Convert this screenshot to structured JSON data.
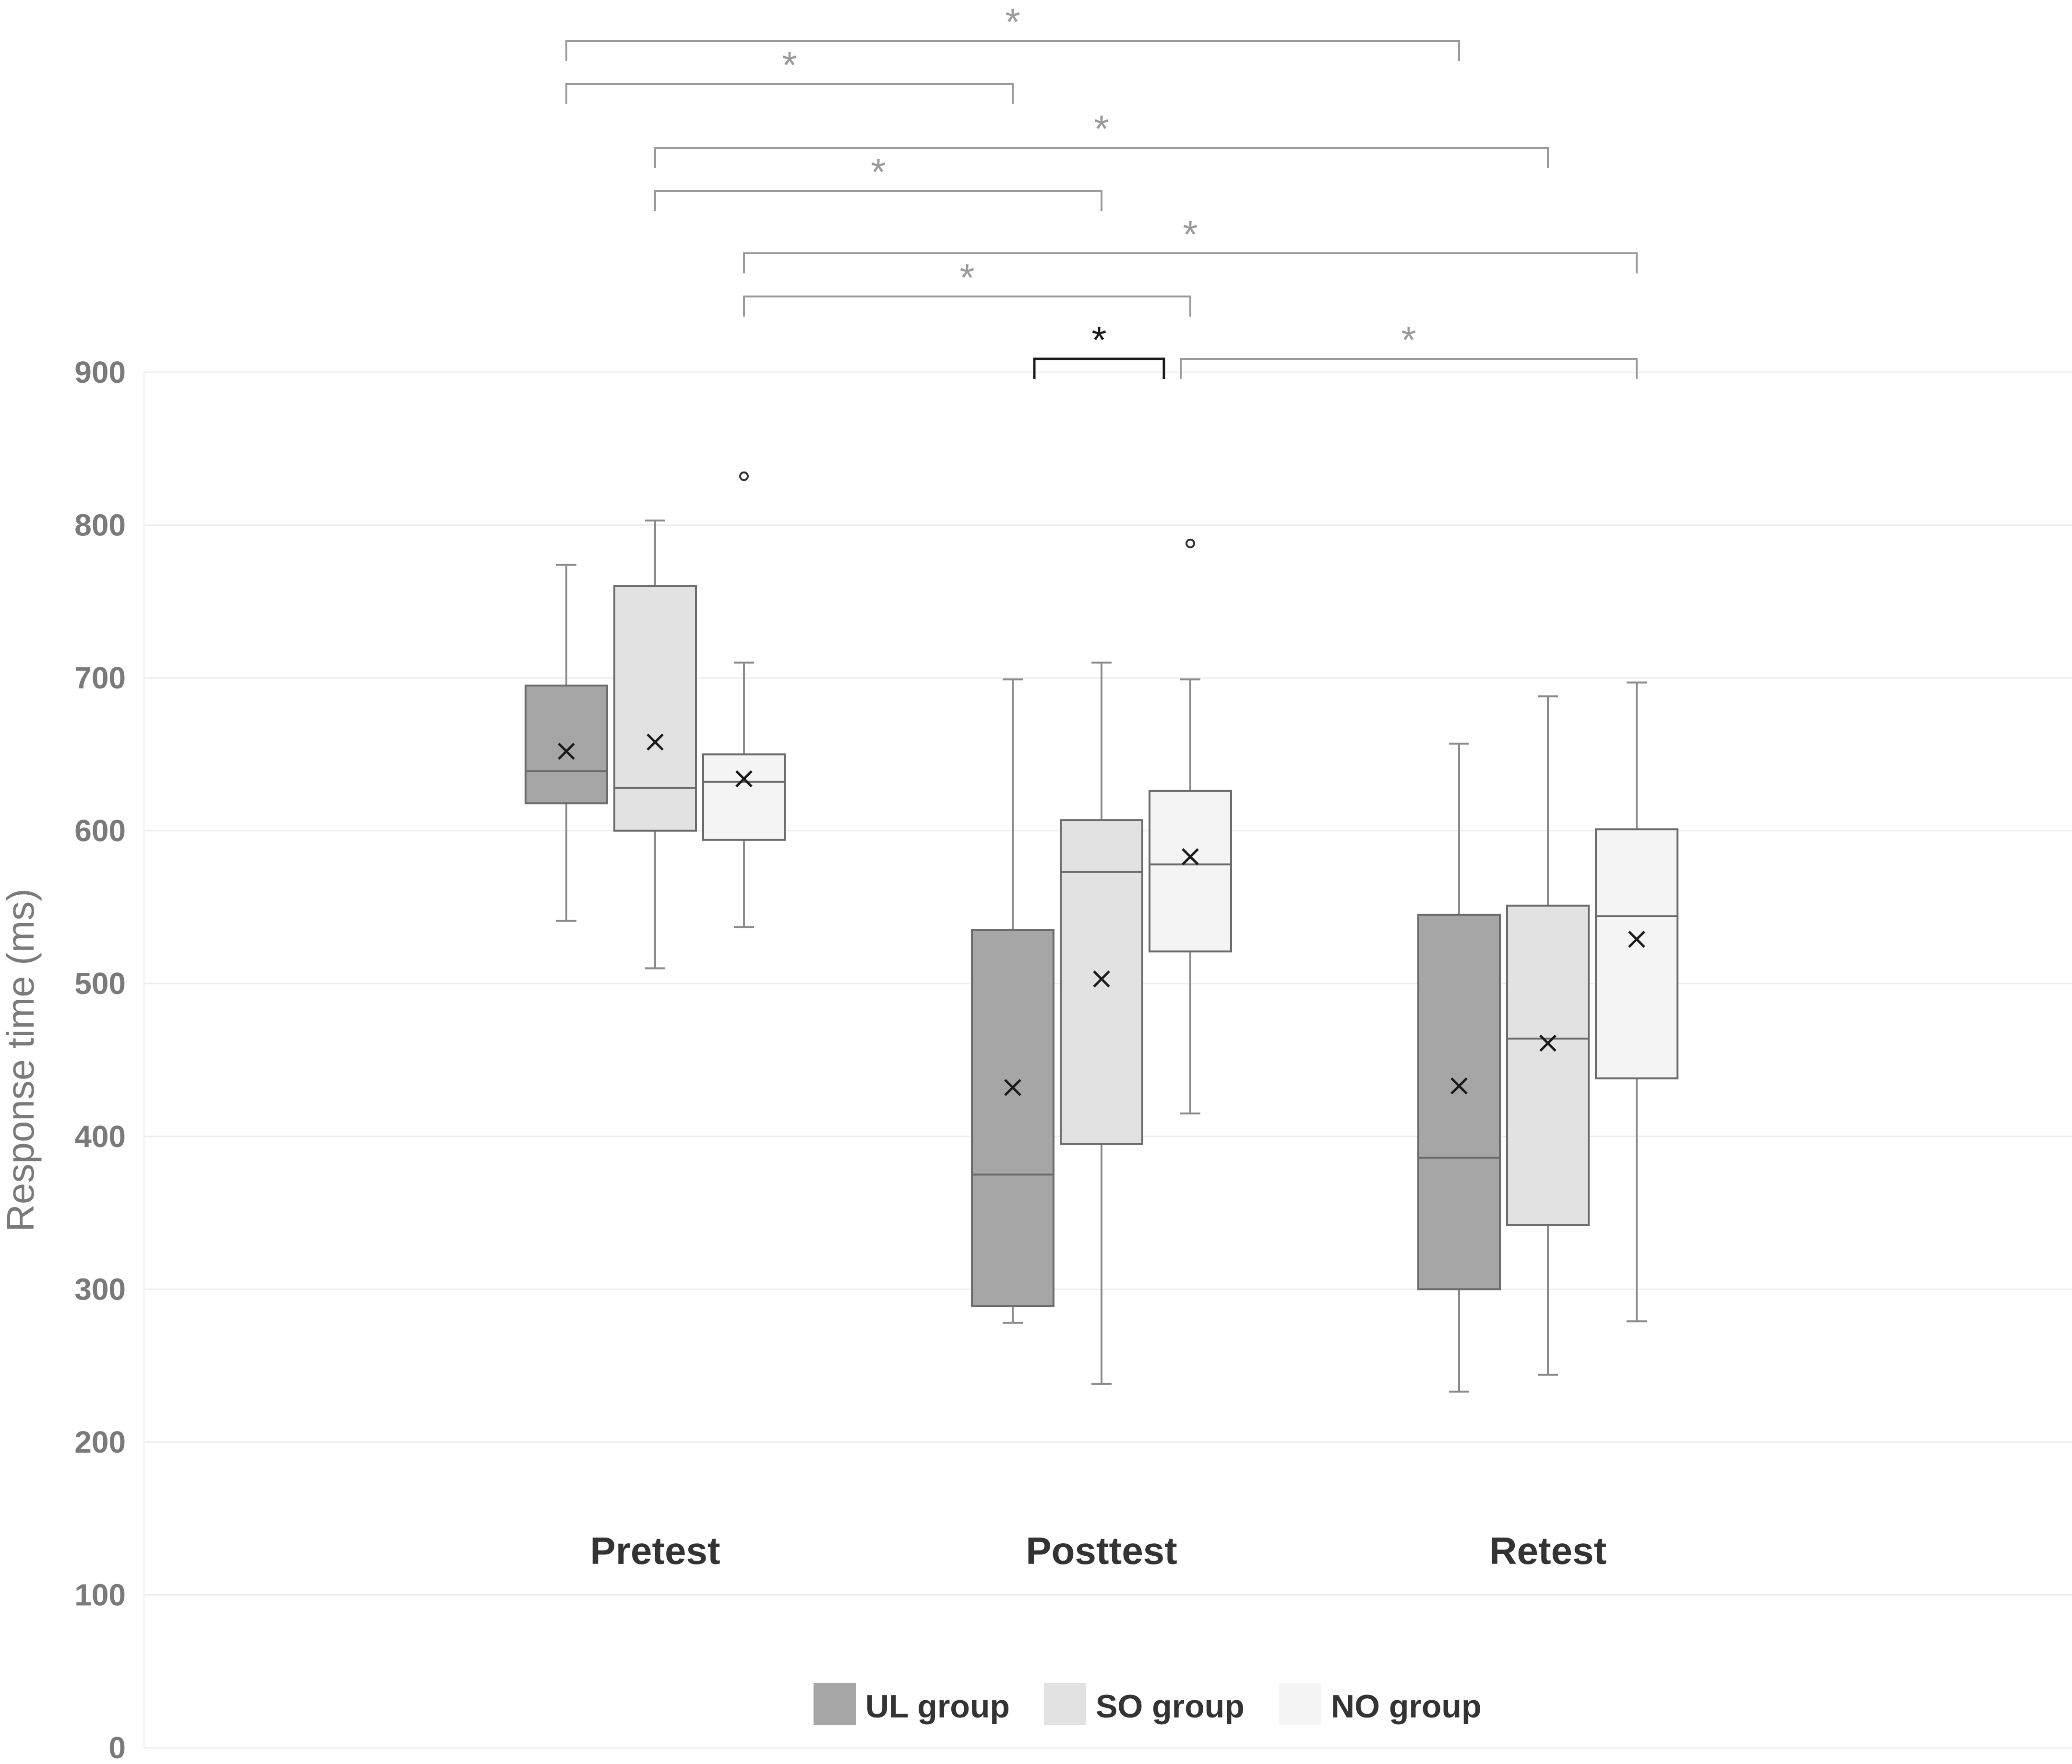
{
  "chart_data": {
    "type": "box",
    "ylabel": "Response time (ms)",
    "ylim": [
      0,
      900
    ],
    "yticks": [
      0,
      100,
      200,
      300,
      400,
      500,
      600,
      700,
      800,
      900
    ],
    "grid": true,
    "legend_position": "bottom",
    "categories": [
      "Pretest",
      "Posttest",
      "Retest"
    ],
    "series": [
      {
        "name": "UL group",
        "color": "#a6a6a6",
        "boxes": [
          {
            "min": 541,
            "q1": 618,
            "median": 639,
            "q3": 695,
            "max": 774,
            "mean": 652,
            "outliers": []
          },
          {
            "min": 278,
            "q1": 289,
            "median": 375,
            "q3": 535,
            "max": 699,
            "mean": 432,
            "outliers": []
          },
          {
            "min": 233,
            "q1": 300,
            "median": 386,
            "q3": 545,
            "max": 657,
            "mean": 433,
            "outliers": []
          }
        ]
      },
      {
        "name": "SO group",
        "color": "#e2e2e2",
        "boxes": [
          {
            "min": 510,
            "q1": 600,
            "median": 628,
            "q3": 760,
            "max": 803,
            "mean": 658,
            "outliers": []
          },
          {
            "min": 238,
            "q1": 395,
            "median": 573,
            "q3": 607,
            "max": 710,
            "mean": 503,
            "outliers": []
          },
          {
            "min": 244,
            "q1": 342,
            "median": 464,
            "q3": 551,
            "max": 688,
            "mean": 461,
            "outliers": []
          }
        ]
      },
      {
        "name": "NO group",
        "color": "#f4f4f4",
        "boxes": [
          {
            "min": 537,
            "q1": 594,
            "median": 632,
            "q3": 650,
            "max": 710,
            "mean": 634,
            "outliers": [
              832
            ]
          },
          {
            "min": 415,
            "q1": 521,
            "median": 578,
            "q3": 626,
            "max": 699,
            "mean": 583,
            "outliers": [
              788
            ]
          },
          {
            "min": 279,
            "q1": 438,
            "median": 544,
            "q3": 601,
            "max": 697,
            "mean": 529,
            "outliers": []
          }
        ]
      }
    ],
    "significance": [
      {
        "from": [
          0,
          0
        ],
        "to": [
          2,
          0
        ],
        "label": "*",
        "color": "#9a9a9a"
      },
      {
        "from": [
          0,
          0
        ],
        "to": [
          1,
          0
        ],
        "label": "*",
        "color": "#9a9a9a"
      },
      {
        "from": [
          0,
          1
        ],
        "to": [
          2,
          1
        ],
        "label": "*",
        "color": "#9a9a9a"
      },
      {
        "from": [
          0,
          1
        ],
        "to": [
          1,
          1
        ],
        "label": "*",
        "color": "#9a9a9a"
      },
      {
        "from": [
          0,
          2
        ],
        "to": [
          2,
          2
        ],
        "label": "*",
        "color": "#9a9a9a"
      },
      {
        "from": [
          0,
          2
        ],
        "to": [
          1,
          2
        ],
        "label": "*",
        "color": "#9a9a9a"
      },
      {
        "from": [
          1,
          0
        ],
        "to": [
          1,
          2
        ],
        "label": "*",
        "color": "#1a1a1a"
      },
      {
        "from": [
          1,
          2
        ],
        "to": [
          2,
          2
        ],
        "label": "*",
        "color": "#9a9a9a"
      }
    ]
  }
}
